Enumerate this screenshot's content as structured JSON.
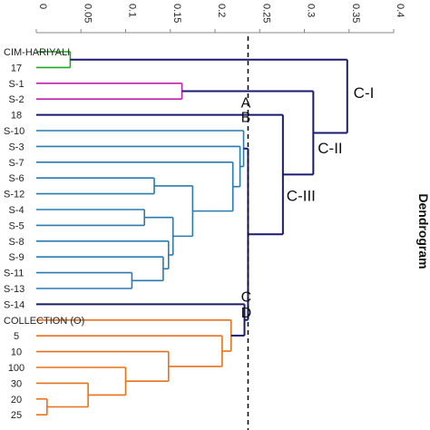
{
  "chart_data": {
    "type": "dendrogram",
    "ylabel": "Dendrogram",
    "xlim": [
      0,
      0.4
    ],
    "xticks": [
      "0",
      "0.05",
      "0.1",
      "0.15",
      "0.2",
      "0.25",
      "0.3",
      "0.35",
      "0.4"
    ],
    "cutoff": 0.237,
    "leaves": [
      "CIM-HARIYALI",
      "17",
      "S-1",
      "S-2",
      "18",
      "S-10",
      "S-3",
      "S-7",
      "S-6",
      "S-12",
      "S-4",
      "S-5",
      "S-8",
      "S-9",
      "S-11",
      "S-13",
      "S-14",
      "COLLECTION (O)",
      "5",
      "10",
      "100",
      "30",
      "20",
      "25"
    ],
    "merges": [
      {
        "id": "g1",
        "children": [
          "CIM-HARIYALI",
          "17"
        ],
        "height": 0.038,
        "color": "#22aa22"
      },
      {
        "id": "p1",
        "children": [
          "S-1",
          "S-2"
        ],
        "height": 0.163,
        "color": "#bb22aa"
      },
      {
        "id": "b1",
        "children": [
          "S-6",
          "S-12"
        ],
        "height": 0.132,
        "color": "#2a7ab0"
      },
      {
        "id": "b2",
        "children": [
          "S-4",
          "S-5"
        ],
        "height": 0.121,
        "color": "#2a7ab0"
      },
      {
        "id": "b3",
        "children": [
          "S-11",
          "S-13"
        ],
        "height": 0.107,
        "color": "#2a7ab0"
      },
      {
        "id": "b4",
        "children": [
          "S-9",
          "b3"
        ],
        "height": 0.142,
        "color": "#2a7ab0"
      },
      {
        "id": "b5",
        "children": [
          "S-8",
          "b4"
        ],
        "height": 0.148,
        "color": "#2a7ab0"
      },
      {
        "id": "b6",
        "children": [
          "b2",
          "b5"
        ],
        "height": 0.153,
        "color": "#2a7ab0"
      },
      {
        "id": "b7",
        "children": [
          "b1",
          "b6"
        ],
        "height": 0.175,
        "color": "#2a7ab0"
      },
      {
        "id": "b8",
        "children": [
          "S-7",
          "b7"
        ],
        "height": 0.22,
        "color": "#2a7ab0"
      },
      {
        "id": "b9",
        "children": [
          "S-3",
          "b8"
        ],
        "height": 0.228,
        "color": "#2a7ab0"
      },
      {
        "id": "b10",
        "children": [
          "S-10",
          "b9"
        ],
        "height": 0.232,
        "color": "#2a7ab0"
      },
      {
        "id": "o1",
        "children": [
          "20",
          "25"
        ],
        "height": 0.012,
        "color": "#e8711a"
      },
      {
        "id": "o2",
        "children": [
          "30",
          "o1"
        ],
        "height": 0.058,
        "color": "#e8711a"
      },
      {
        "id": "o3",
        "children": [
          "100",
          "o2"
        ],
        "height": 0.1,
        "color": "#e8711a"
      },
      {
        "id": "o4",
        "children": [
          "10",
          "o3"
        ],
        "height": 0.148,
        "color": "#e8711a"
      },
      {
        "id": "o5",
        "children": [
          "5",
          "o4"
        ],
        "height": 0.208,
        "color": "#e8711a"
      },
      {
        "id": "o6",
        "children": [
          "COLLECTION (O)",
          "o5"
        ],
        "height": 0.218,
        "color": "#e8711a"
      },
      {
        "id": "n1",
        "children": [
          "S-14",
          "o6"
        ],
        "height": 0.233,
        "color": "#1a1a6e"
      },
      {
        "id": "n2",
        "children": [
          "b10",
          "n1"
        ],
        "height": 0.237,
        "color": "#1a1a6e"
      },
      {
        "id": "n3",
        "children": [
          "18",
          "n2"
        ],
        "height": 0.276,
        "color": "#1a1a6e"
      },
      {
        "id": "n4",
        "children": [
          "p1",
          "n3"
        ],
        "height": 0.31,
        "color": "#1a1a6e"
      },
      {
        "id": "n5",
        "children": [
          "g1",
          "n4"
        ],
        "height": 0.348,
        "color": "#1a1a6e"
      }
    ],
    "annotations": [
      {
        "text": "A",
        "x": 0.229,
        "y": 3.2
      },
      {
        "text": "B",
        "x": 0.229,
        "y": 4.1
      },
      {
        "text": "C",
        "x": 0.229,
        "y": 15.5
      },
      {
        "text": "D",
        "x": 0.229,
        "y": 16.5
      },
      {
        "text": "C-I",
        "x": 0.355,
        "y": 2.6
      },
      {
        "text": "C-II",
        "x": 0.315,
        "y": 6.1
      },
      {
        "text": "C-III",
        "x": 0.28,
        "y": 9.1
      }
    ]
  }
}
